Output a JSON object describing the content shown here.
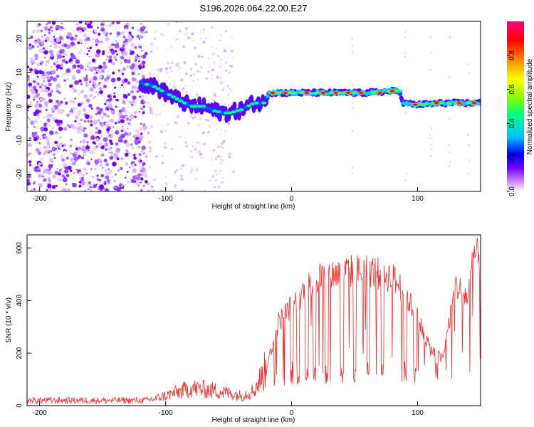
{
  "title": "S196.2026.064.22.00.E27",
  "chart_data": [
    {
      "type": "heatmap",
      "name": "spectrogram",
      "title": "S196.2026.064.22.00.E27",
      "xlabel": "Height of straight line (km)",
      "ylabel": "Frequency (Hz)",
      "xlim": [
        -210,
        150
      ],
      "ylim": [
        -25,
        25
      ],
      "xticks": [
        -200,
        -100,
        0,
        100
      ],
      "yticks": [
        -20,
        -10,
        0,
        10,
        20
      ],
      "xtick_labels": [
        "-200",
        "-100",
        "0",
        "100"
      ],
      "ytick_labels": [
        "-20",
        "-10",
        "0",
        "10",
        "20"
      ],
      "colorbar": {
        "label": "Normalized spectral amplitude",
        "range": [
          0,
          1
        ],
        "ticks": [
          "0.0",
          "0.2",
          "0.4",
          "0.6",
          "0.8"
        ],
        "colors": [
          "#ffffff",
          "#d080ff",
          "#7000ff",
          "#0000ff",
          "#00c0ff",
          "#00ff80",
          "#80ff00",
          "#ffff00",
          "#ff8000",
          "#ff0000",
          "#ff0080"
        ]
      },
      "ridge": {
        "x": [
          -120,
          -110,
          -100,
          -90,
          -80,
          -70,
          -60,
          -50,
          -40,
          -30,
          -22,
          -18,
          -10,
          0,
          20,
          40,
          60,
          80,
          86,
          88,
          100,
          120,
          150
        ],
        "y": [
          7,
          6,
          4,
          2,
          0,
          0,
          -1.5,
          -2,
          -1,
          1,
          1,
          4,
          4,
          4,
          4,
          4,
          4,
          4.5,
          4.5,
          1,
          0.5,
          1,
          1
        ]
      }
    },
    {
      "type": "line",
      "name": "snr",
      "xlabel": "Height of straight line (km)",
      "ylabel": "SNR (10 * v/v)",
      "xlim": [
        -210,
        150
      ],
      "ylim": [
        0,
        650
      ],
      "xticks": [
        -200,
        -100,
        0,
        100
      ],
      "yticks": [
        0,
        200,
        400,
        600
      ],
      "xtick_labels": [
        "-200",
        "-100",
        "0",
        "100"
      ],
      "ytick_labels": [
        "0",
        "200",
        "400",
        "600"
      ],
      "line_color": "#e83030",
      "envelope": {
        "x": [
          -210,
          -120,
          -110,
          -100,
          -80,
          -60,
          -40,
          -30,
          -20,
          -10,
          0,
          10,
          20,
          40,
          60,
          80,
          90,
          100,
          110,
          120,
          130,
          140,
          145,
          150
        ],
        "y": [
          20,
          20,
          25,
          40,
          70,
          60,
          40,
          60,
          150,
          330,
          390,
          450,
          500,
          520,
          530,
          500,
          440,
          340,
          220,
          180,
          470,
          420,
          600,
          560
        ]
      }
    }
  ]
}
